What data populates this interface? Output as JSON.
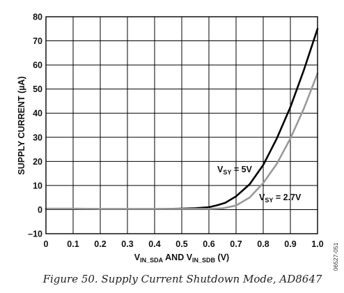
{
  "chart_data": {
    "type": "line",
    "x_ticks": [
      "0",
      "0.1",
      "0.2",
      "0.3",
      "0.4",
      "0.5",
      "0.6",
      "0.7",
      "0.8",
      "0.9",
      "1.0"
    ],
    "y_ticks": [
      "–10",
      "0",
      "10",
      "20",
      "30",
      "40",
      "50",
      "60",
      "70",
      "80"
    ],
    "xlim": [
      0,
      1.0
    ],
    "ylim": [
      -10,
      80
    ],
    "grid": true,
    "ylabel": "SUPPLY CURRENT (µA)",
    "xlabel": {
      "p1": "V",
      "s1": "IN_SDA",
      "p2": " AND V",
      "s2": "IN_SDB",
      "p3": " (V)"
    },
    "series": [
      {
        "color": "#000000",
        "annotation": {
          "p1": "V",
          "sub": "SY",
          "p2": " = 5V"
        },
        "x": [
          0,
          0.1,
          0.2,
          0.3,
          0.4,
          0.5,
          0.55,
          0.6,
          0.63,
          0.66,
          0.7,
          0.75,
          0.8,
          0.85,
          0.9,
          0.95,
          1.0
        ],
        "y": [
          0.3,
          0.3,
          0.2,
          0.2,
          0.2,
          0.4,
          0.6,
          1.0,
          1.8,
          2.8,
          5.5,
          10.5,
          18.5,
          29.5,
          42.5,
          58,
          75
        ]
      },
      {
        "color": "#999999",
        "annotation": {
          "p1": "V",
          "sub": "SY",
          "p2": " = 2.7V"
        },
        "x": [
          0,
          0.1,
          0.2,
          0.3,
          0.4,
          0.5,
          0.6,
          0.65,
          0.7,
          0.75,
          0.8,
          0.85,
          0.9,
          0.95,
          1.0
        ],
        "y": [
          0.4,
          0.4,
          0.3,
          0.3,
          0.3,
          0.3,
          0.3,
          0.5,
          1.7,
          5.0,
          11.0,
          19.0,
          29.5,
          42.0,
          56.5
        ]
      }
    ]
  },
  "caption": "Figure 50. Supply Current Shutdown Mode, AD8647",
  "figure_id": "06527-051"
}
